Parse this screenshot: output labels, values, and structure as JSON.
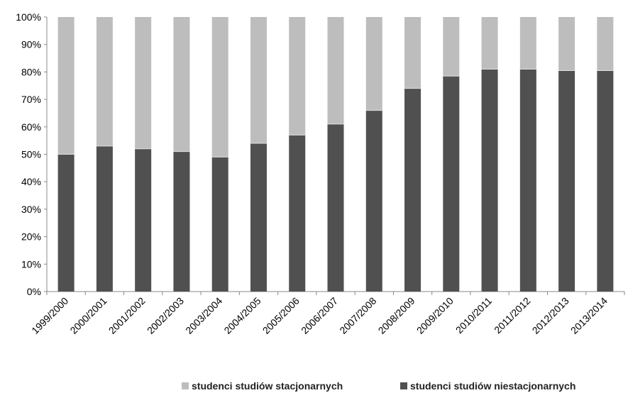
{
  "chart_data": {
    "type": "bar",
    "stacked": true,
    "percent": true,
    "categories": [
      "1999/2000",
      "2000/2001",
      "2001/2002",
      "2002/2003",
      "2003/2004",
      "2004/2005",
      "2005/2006",
      "2006/2007",
      "2007/2008",
      "2008/2009",
      "2009/2010",
      "2010/2011",
      "2011/2012",
      "2012/2013",
      "2013/2014"
    ],
    "series": [
      {
        "name": "studenci studiów niestacjonarnych",
        "color": "#505050",
        "values": [
          50,
          53,
          52,
          51,
          49,
          54,
          57,
          61,
          66,
          74,
          78.5,
          81,
          81,
          80.5,
          80.5
        ]
      },
      {
        "name": "studenci studiów stacjonarnych",
        "color": "#bdbdbd",
        "values": [
          50,
          47,
          48,
          49,
          51,
          46,
          43,
          39,
          34,
          26,
          21.5,
          19,
          19,
          19.5,
          19.5
        ]
      }
    ],
    "yticks": [
      "0%",
      "10%",
      "20%",
      "30%",
      "40%",
      "50%",
      "60%",
      "70%",
      "80%",
      "90%",
      "100%"
    ],
    "ylim": [
      0,
      100
    ],
    "legend_position": "bottom",
    "grid": false,
    "xlabel": "",
    "ylabel": ""
  },
  "legend": {
    "stacjonarne": "studenci studiów stacjonarnych",
    "niestacjonarne": "studenci studiów niestacjonarnych"
  }
}
